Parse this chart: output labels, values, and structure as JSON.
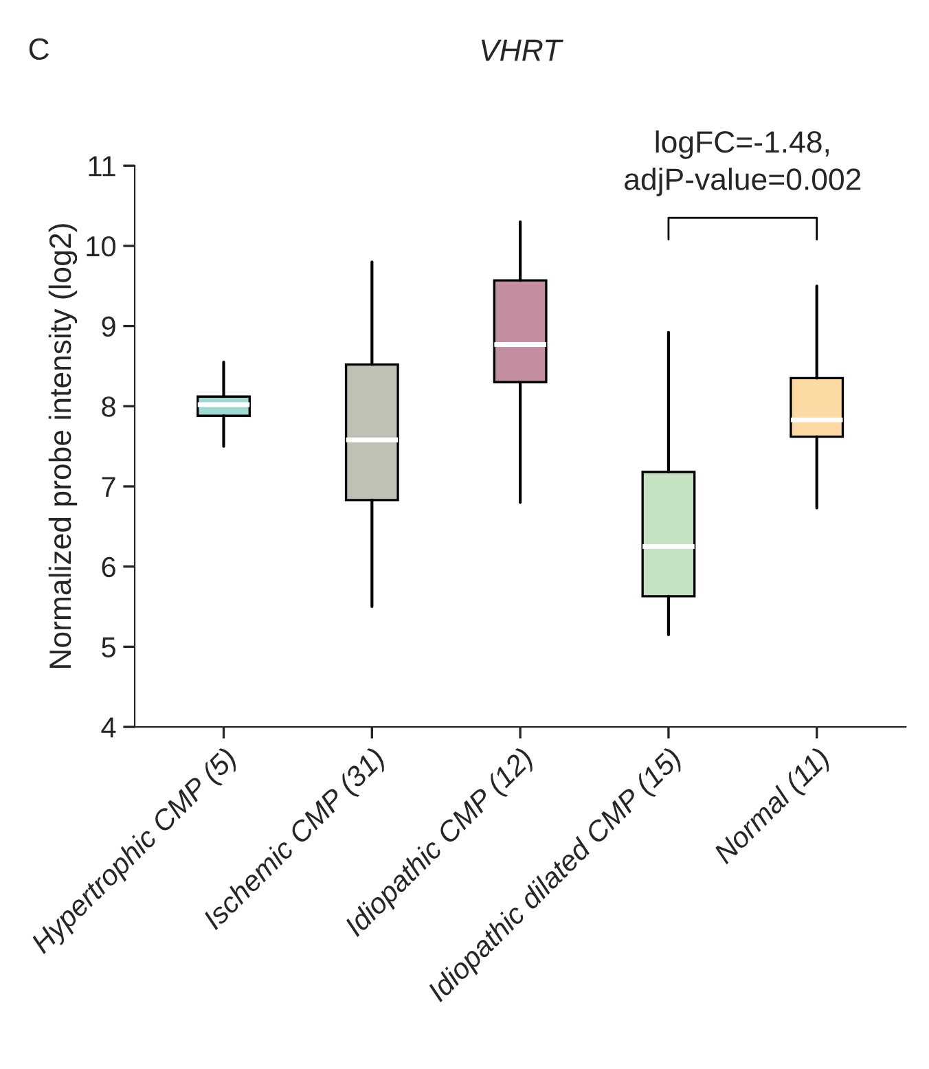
{
  "chart_data": {
    "type": "box",
    "title": "VHRT",
    "ylabel": "Normalized probe intensity (log2)",
    "categories": [
      "Hypertrophic CMP (5)",
      "Ischemic CMP (31)",
      "Idiopathic CMP (12)",
      "Idiopathic dilated CMP (15)",
      "Normal (11)"
    ],
    "colors": [
      "#9ed9d1",
      "#bec1b3",
      "#c48ea2",
      "#c5e3c2",
      "#fdd9a4"
    ],
    "boxes": [
      {
        "low": 7.5,
        "q1": 7.88,
        "median": 8.02,
        "q3": 8.12,
        "high": 8.55
      },
      {
        "low": 5.5,
        "q1": 6.83,
        "median": 7.58,
        "q3": 8.52,
        "high": 9.8
      },
      {
        "low": 6.8,
        "q1": 8.3,
        "median": 8.77,
        "q3": 9.57,
        "high": 10.3
      },
      {
        "low": 5.15,
        "q1": 5.63,
        "median": 6.25,
        "q3": 7.18,
        "high": 8.92
      },
      {
        "low": 6.73,
        "q1": 7.62,
        "median": 7.83,
        "q3": 8.35,
        "high": 9.5
      }
    ],
    "ylim": [
      4,
      11
    ],
    "yticks": [
      4,
      5,
      6,
      7,
      8,
      9,
      10,
      11
    ],
    "grid": false,
    "legend": false,
    "annotations": [
      "C",
      "logFC=-1.48,\nadjP-value=0.002"
    ]
  }
}
